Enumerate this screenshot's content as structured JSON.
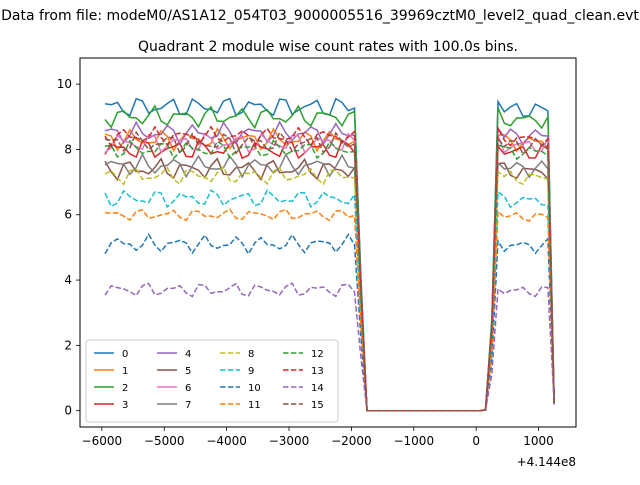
{
  "page": {
    "suptitle": "Data from file: modeM0/AS1A12_054T03_9000005516_39969cztM0_level2_quad_clean.evt",
    "title": "Quadrant 2 module wise count rates with 100.0s bins."
  },
  "chart_data": {
    "type": "line",
    "title": "Quadrant 2 module wise count rates with 100.0s bins.",
    "xlabel": "",
    "ylabel": "",
    "x_offset_label": "+4.144e8",
    "xlim": [
      -6350,
      1600
    ],
    "ylim": [
      -0.5,
      10.8
    ],
    "x_ticks": [
      -6000,
      -5000,
      -4000,
      -3000,
      -2000,
      -1000,
      0,
      1000
    ],
    "x_tick_labels": [
      "−6000",
      "−5000",
      "−4000",
      "−3000",
      "−2000",
      "−1000",
      "0",
      "1000"
    ],
    "y_ticks": [
      0,
      2,
      4,
      6,
      8,
      10
    ],
    "y_tick_labels": [
      "0",
      "2",
      "4",
      "6",
      "8",
      "10"
    ],
    "grid": false,
    "legend_position": "lower-left",
    "legend_columns": 4,
    "x": [
      -5950,
      -5850,
      -5750,
      -5650,
      -5550,
      -5450,
      -5350,
      -5250,
      -5150,
      -5050,
      -4950,
      -4850,
      -4750,
      -4650,
      -4550,
      -4450,
      -4350,
      -4250,
      -4150,
      -4050,
      -3950,
      -3850,
      -3750,
      -3650,
      -3550,
      -3450,
      -3350,
      -3250,
      -3150,
      -3050,
      -2950,
      -2850,
      -2750,
      -2650,
      -2550,
      -2450,
      -2350,
      -2250,
      -2150,
      -2050,
      -1950,
      -1850,
      -1750,
      -1650,
      -1550,
      -1450,
      -1350,
      -1250,
      -1150,
      -1050,
      -950,
      -850,
      -750,
      -650,
      -550,
      -450,
      -350,
      -250,
      -150,
      -50,
      50,
      150,
      250,
      350,
      450,
      550,
      650,
      750,
      850,
      950,
      1050,
      1150,
      1250
    ],
    "series": [
      {
        "name": "0",
        "color": "#1f77b4",
        "dash": "solid",
        "base": 9.3,
        "amp": 0.35
      },
      {
        "name": "1",
        "color": "#ff7f0e",
        "dash": "solid",
        "base": 8.3,
        "amp": 0.35
      },
      {
        "name": "2",
        "color": "#2ca02c",
        "dash": "solid",
        "base": 9.0,
        "amp": 0.35
      },
      {
        "name": "3",
        "color": "#d62728",
        "dash": "solid",
        "base": 8.0,
        "amp": 0.35
      },
      {
        "name": "4",
        "color": "#9467bd",
        "dash": "solid",
        "base": 8.5,
        "amp": 0.35
      },
      {
        "name": "5",
        "color": "#8c564b",
        "dash": "solid",
        "base": 7.4,
        "amp": 0.35
      },
      {
        "name": "6",
        "color": "#e377c2",
        "dash": "solid",
        "base": 8.2,
        "amp": 0.35
      },
      {
        "name": "7",
        "color": "#7f7f7f",
        "dash": "solid",
        "base": 7.5,
        "amp": 0.35
      },
      {
        "name": "8",
        "color": "#bcbd22",
        "dash": "dashed",
        "base": 7.2,
        "amp": 0.3
      },
      {
        "name": "9",
        "color": "#17becf",
        "dash": "dashed",
        "base": 6.5,
        "amp": 0.3
      },
      {
        "name": "10",
        "color": "#1f77b4",
        "dash": "dashed",
        "base": 5.1,
        "amp": 0.3
      },
      {
        "name": "11",
        "color": "#ff7f0e",
        "dash": "dashed",
        "base": 6.0,
        "amp": 0.2
      },
      {
        "name": "12",
        "color": "#2ca02c",
        "dash": "dashed",
        "base": 8.0,
        "amp": 0.3
      },
      {
        "name": "13",
        "color": "#d62728",
        "dash": "dashed",
        "base": 8.4,
        "amp": 0.3
      },
      {
        "name": "14",
        "color": "#9467bd",
        "dash": "dashed",
        "base": 3.7,
        "amp": 0.25
      },
      {
        "name": "15",
        "color": "#8c564b",
        "dash": "dashed",
        "base": 8.2,
        "amp": 0.35
      }
    ]
  }
}
